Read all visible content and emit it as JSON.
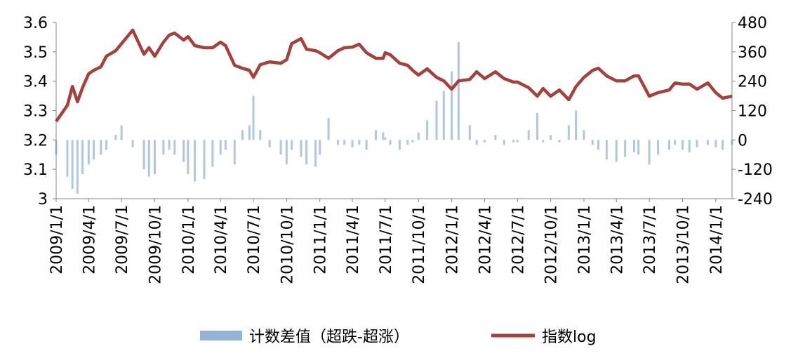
{
  "chart_data": {
    "type": "bar_line",
    "x": [
      "2009/1/1",
      "2009/2/1",
      "2009/2/15",
      "2009/3/1",
      "2009/3/15",
      "2009/4/1",
      "2009/4/15",
      "2009/5/5",
      "2009/5/20",
      "2009/6/15",
      "2009/7/1",
      "2009/8/1",
      "2009/9/1",
      "2009/9/15",
      "2009/10/1",
      "2009/10/25",
      "2009/11/10",
      "2009/11/25",
      "2009/12/20",
      "2010/1/1",
      "2010/1/20",
      "2010/2/15",
      "2010/3/10",
      "2010/4/1",
      "2010/4/15",
      "2010/5/10",
      "2010/6/1",
      "2010/6/20",
      "2010/7/1",
      "2010/7/20",
      "2010/8/15",
      "2010/9/15",
      "2010/10/1",
      "2010/10/15",
      "2010/11/10",
      "2010/11/25",
      "2010/12/20",
      "2011/1/1",
      "2011/1/25",
      "2011/2/20",
      "2011/3/10",
      "2011/4/1",
      "2011/4/20",
      "2011/5/10",
      "2011/6/5",
      "2011/6/25",
      "2011/7/1",
      "2011/7/15",
      "2011/8/10",
      "2011/9/1",
      "2011/9/15",
      "2011/10/1",
      "2011/10/25",
      "2011/11/20",
      "2011/12/10",
      "2012/1/1",
      "2012/1/20",
      "2012/2/20",
      "2012/3/10",
      "2012/4/1",
      "2012/5/1",
      "2012/5/25",
      "2012/6/20",
      "2012/7/1",
      "2012/8/1",
      "2012/8/25",
      "2012/9/10",
      "2012/10/1",
      "2012/10/25",
      "2012/11/20",
      "2012/12/10",
      "2013/1/1",
      "2013/1/25",
      "2013/2/10",
      "2013/3/5",
      "2013/4/1",
      "2013/4/25",
      "2013/5/20",
      "2013/6/1",
      "2013/7/1",
      "2013/7/25",
      "2013/8/25",
      "2013/9/10",
      "2013/10/1",
      "2013/10/20",
      "2013/11/10",
      "2013/12/10",
      "2014/1/1",
      "2014/1/20",
      "2014/2/15"
    ],
    "series": [
      {
        "name": "计数差值（超跌-超涨）",
        "type": "bar",
        "axis": "y2",
        "color": "#95b3d7",
        "values": [
          -60,
          -150,
          -200,
          -220,
          -140,
          -100,
          -80,
          -60,
          -40,
          20,
          60,
          -30,
          -120,
          -150,
          -140,
          -60,
          -40,
          -60,
          -90,
          -140,
          -170,
          -160,
          -110,
          -60,
          -40,
          -100,
          40,
          60,
          180,
          40,
          -30,
          -60,
          -100,
          -40,
          -70,
          -100,
          -110,
          -60,
          90,
          -20,
          -20,
          -30,
          -20,
          -40,
          40,
          30,
          10,
          -20,
          -40,
          -20,
          -10,
          30,
          80,
          160,
          200,
          280,
          400,
          60,
          -20,
          -10,
          20,
          -20,
          -10,
          -10,
          40,
          110,
          -10,
          20,
          -10,
          60,
          120,
          40,
          -20,
          -40,
          -80,
          -90,
          -70,
          -50,
          -60,
          -100,
          -60,
          -40,
          -20,
          -40,
          -50,
          -30,
          -20,
          -30,
          -40,
          -20
        ]
      },
      {
        "name": "指数log",
        "type": "line",
        "axis": "y",
        "color": "#a5403c",
        "values": [
          3.263,
          3.318,
          3.382,
          3.33,
          3.378,
          3.425,
          3.437,
          3.449,
          3.485,
          3.504,
          3.528,
          3.574,
          3.492,
          3.514,
          3.485,
          3.533,
          3.557,
          3.564,
          3.54,
          3.552,
          3.521,
          3.514,
          3.514,
          3.533,
          3.521,
          3.454,
          3.444,
          3.437,
          3.413,
          3.456,
          3.466,
          3.461,
          3.473,
          3.528,
          3.545,
          3.509,
          3.504,
          3.497,
          3.478,
          3.504,
          3.514,
          3.516,
          3.526,
          3.497,
          3.478,
          3.478,
          3.497,
          3.49,
          3.461,
          3.454,
          3.437,
          3.421,
          3.442,
          3.413,
          3.401,
          3.373,
          3.401,
          3.406,
          3.432,
          3.409,
          3.432,
          3.409,
          3.397,
          3.397,
          3.378,
          3.349,
          3.375,
          3.349,
          3.37,
          3.337,
          3.382,
          3.413,
          3.437,
          3.444,
          3.418,
          3.401,
          3.401,
          3.418,
          3.418,
          3.349,
          3.361,
          3.37,
          3.394,
          3.39,
          3.39,
          3.373,
          3.394,
          3.361,
          3.342,
          3.349
        ]
      }
    ],
    "xlim": [
      "2009/1/1",
      "2014/2/15"
    ],
    "xticks": [
      "2009/1/1",
      "2009/4/1",
      "2009/7/1",
      "2009/10/1",
      "2010/1/1",
      "2010/4/1",
      "2010/7/1",
      "2010/10/1",
      "2011/1/1",
      "2011/4/1",
      "2011/7/1",
      "2011/10/1",
      "2012/1/1",
      "2012/4/1",
      "2012/7/1",
      "2012/10/1",
      "2013/1/1",
      "2013/4/1",
      "2013/7/1",
      "2013/10/1",
      "2014/1/1"
    ],
    "ylim": [
      3,
      3.6
    ],
    "yticks": [
      3,
      3.1,
      3.2,
      3.3,
      3.4,
      3.5,
      3.6
    ],
    "y2lim": [
      -240,
      480
    ],
    "y2ticks": [
      -240,
      -120,
      0,
      120,
      240,
      360,
      480
    ],
    "grid": false,
    "legend": "bottom"
  }
}
